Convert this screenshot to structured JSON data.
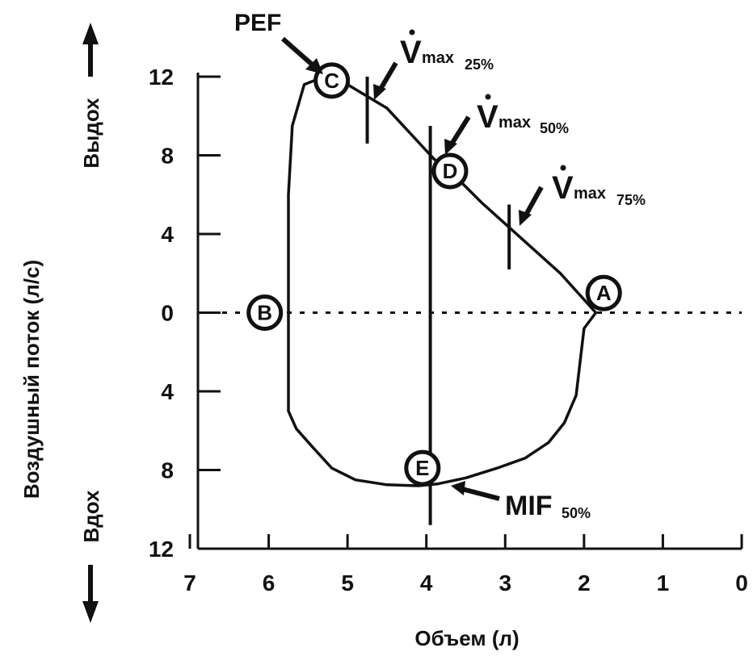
{
  "chart_data": {
    "type": "line",
    "title": "",
    "xlabel": "Объем (л)",
    "ylabel": "Воздушный поток (л/с)",
    "y_direction_labels": {
      "up": "Выдох",
      "down": "Вдох"
    },
    "x_reversed": true,
    "xlim": [
      7,
      0
    ],
    "ylim": [
      -12,
      12
    ],
    "x_ticks": [
      7,
      6,
      5,
      4,
      3,
      2,
      1,
      0
    ],
    "x_tick_labels": [
      "7",
      "6",
      "5",
      "4",
      "3",
      "2",
      "1",
      "0"
    ],
    "y_ticks": [
      12,
      8,
      4,
      0,
      -4,
      -8,
      -12
    ],
    "y_tick_labels": [
      "12",
      "8",
      "4",
      "0",
      "4",
      "8",
      "12"
    ],
    "grid": false,
    "zero_line": "dotted",
    "series": [
      {
        "points": [
          [
            1.85,
            0
          ],
          [
            2.0,
            -0.8
          ],
          [
            2.05,
            -2.5
          ],
          [
            2.1,
            -4.2
          ],
          [
            2.25,
            -5.6
          ],
          [
            2.45,
            -6.6
          ],
          [
            2.75,
            -7.4
          ],
          [
            3.1,
            -7.9
          ],
          [
            3.5,
            -8.4
          ],
          [
            3.85,
            -8.7
          ],
          [
            4.1,
            -8.8
          ],
          [
            4.5,
            -8.75
          ],
          [
            4.9,
            -8.5
          ],
          [
            5.2,
            -7.9
          ],
          [
            5.45,
            -6.8
          ],
          [
            5.65,
            -5.9
          ],
          [
            5.75,
            -5.0
          ],
          [
            5.75,
            -2.0
          ],
          [
            5.75,
            2.0
          ],
          [
            5.75,
            6.0
          ],
          [
            5.7,
            9.5
          ],
          [
            5.55,
            11.6
          ],
          [
            5.3,
            12.0
          ],
          [
            5.0,
            11.6
          ],
          [
            4.5,
            10.4
          ],
          [
            3.9,
            7.8
          ],
          [
            3.65,
            7.0
          ],
          [
            3.3,
            5.6
          ],
          [
            2.8,
            3.8
          ],
          [
            2.3,
            2.0
          ],
          [
            1.85,
            0
          ]
        ]
      }
    ],
    "reference_lines": {
      "vertical_at_x": 3.95,
      "v25_tick_x": 4.75,
      "v50_tick_x": 3.95,
      "v75_tick_x": 2.95
    },
    "points": [
      {
        "label": "A",
        "x": 1.75,
        "y": 1.0
      },
      {
        "label": "B",
        "x": 6.05,
        "y": 0
      },
      {
        "label": "C",
        "x": 5.2,
        "y": 11.8
      },
      {
        "label": "D",
        "x": 3.7,
        "y": 7.2
      },
      {
        "label": "E",
        "x": 4.05,
        "y": -7.9
      }
    ],
    "annotations": [
      {
        "id": "pef",
        "text": "PEF"
      },
      {
        "id": "vmax25",
        "main": "V",
        "sub": "max",
        "subscript": "25%"
      },
      {
        "id": "vmax50",
        "main": "V",
        "sub": "max",
        "subscript": "50%"
      },
      {
        "id": "vmax75",
        "main": "V",
        "sub": "max",
        "subscript": "75%"
      },
      {
        "id": "mif50",
        "main": "MIF",
        "subscript": "50%"
      }
    ]
  }
}
